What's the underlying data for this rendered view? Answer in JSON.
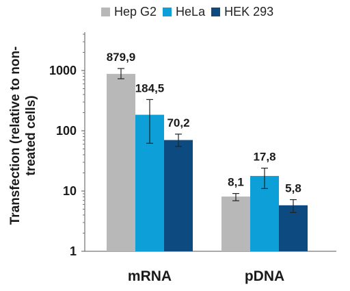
{
  "chart_data": {
    "type": "bar",
    "title": "",
    "xlabel": "",
    "ylabel_line1": "Transfection (relative to non-",
    "ylabel_line2": "treated cells)",
    "yscale": "log",
    "ylim": [
      1,
      4000
    ],
    "yticks": [
      "1",
      "10",
      "100",
      "1000"
    ],
    "yticks_values": [
      1,
      10,
      100,
      1000
    ],
    "grid": false,
    "legend_position": "top",
    "categories": [
      "mRNA",
      "pDNA"
    ],
    "series": [
      {
        "name": "Hep G2",
        "color": "#b8b8b8",
        "values": [
          879.9,
          8.1
        ],
        "labels": [
          "879,9",
          "8,1"
        ],
        "err_low": [
          730,
          6.9
        ],
        "err_high": [
          1080,
          9.1
        ]
      },
      {
        "name": "HeLa",
        "color": "#0d9fd8",
        "values": [
          184.5,
          17.8
        ],
        "labels": [
          "184,5",
          "17,8"
        ],
        "err_low": [
          62,
          11
        ],
        "err_high": [
          330,
          24
        ]
      },
      {
        "name": "HEK 293",
        "color": "#0c4a80",
        "values": [
          70.2,
          5.8
        ],
        "labels": [
          "70,2",
          "5,8"
        ],
        "err_low": [
          55,
          4.4
        ],
        "err_high": [
          88,
          7.2
        ]
      }
    ]
  }
}
